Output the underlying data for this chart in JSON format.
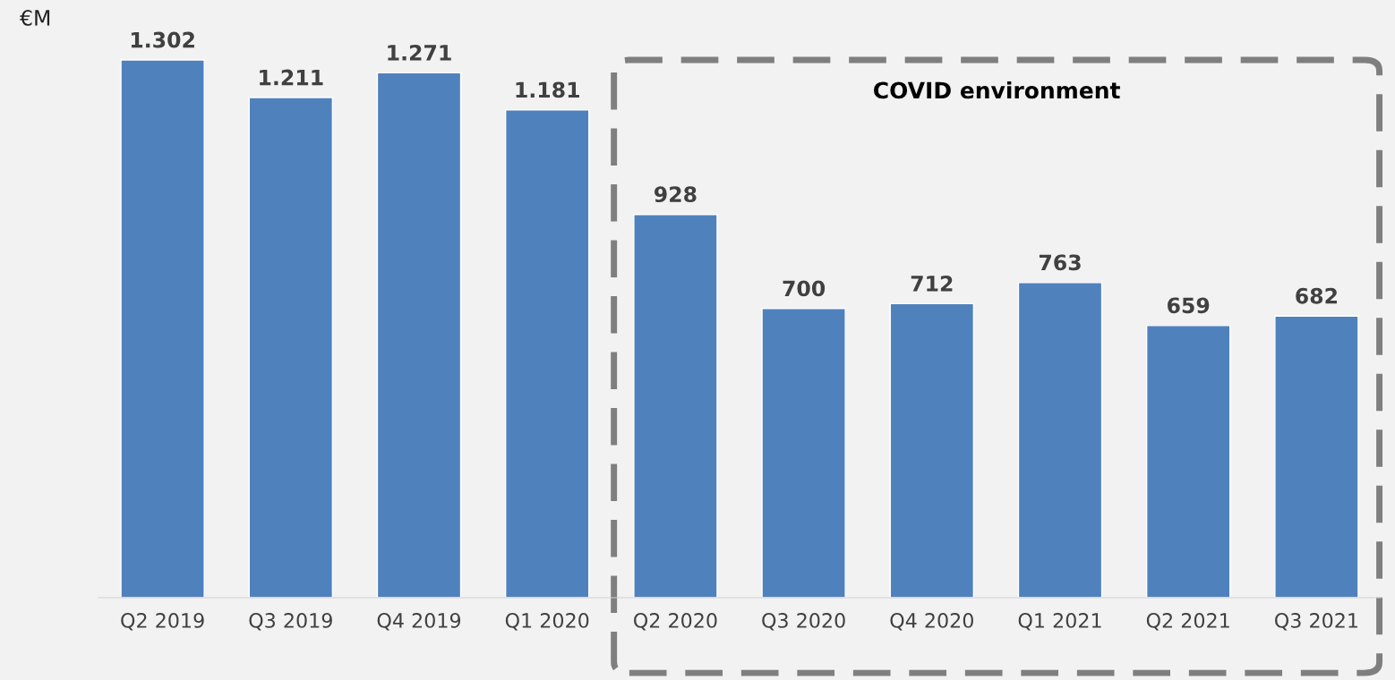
{
  "chart_data": {
    "type": "bar",
    "ylabel": "€M",
    "categories": [
      "Q2 2019",
      "Q3 2019",
      "Q4 2019",
      "Q1 2020",
      "Q2 2020",
      "Q3 2020",
      "Q4 2020",
      "Q1 2021",
      "Q2 2021",
      "Q3 2021"
    ],
    "values": [
      1302,
      1211,
      1271,
      1181,
      928,
      700,
      712,
      763,
      659,
      682
    ],
    "value_labels": [
      "1.302",
      "1.211",
      "1.271",
      "1.181",
      "928",
      "700",
      "712",
      "763",
      "659",
      "682"
    ],
    "color": "#4f81bd",
    "annotations": [
      "COVID environment"
    ]
  }
}
